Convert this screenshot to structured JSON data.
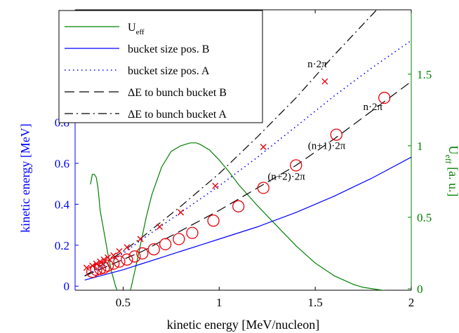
{
  "chart_data": {
    "type": "line",
    "xlabel": "kinetic energy [MeV/nucleon]",
    "ylabel_left": "kinetic energy [MeV]",
    "ylabel_right_main": "U",
    "ylabel_right_sub": "eff",
    "ylabel_right_rest": " [a. u.]",
    "xlim": [
      0.25,
      2.0
    ],
    "ylim_left": [
      -0.02,
      1.35
    ],
    "ylim_right": [
      -0.01,
      1.95
    ],
    "x_ticks": [
      0.5,
      1,
      1.5,
      2
    ],
    "x_tick_labels": [
      "0.5",
      "1",
      "1.5",
      "2"
    ],
    "y_left_ticks": [
      0,
      0.2,
      0.4,
      0.6,
      0.8
    ],
    "y_left_tick_labels": [
      "0",
      "0.2",
      "0.4",
      "0.6",
      "0.8"
    ],
    "y_right_ticks": [
      0,
      0.5,
      1,
      1.5
    ],
    "y_right_tick_labels": [
      "0",
      "0.5",
      "1",
      "1.5"
    ],
    "grid": false,
    "legend_position": "top-left",
    "colors": {
      "ueff": "#008000",
      "bucket_b": "#0000ff",
      "bucket_a": "#0000ff",
      "delta_b": "#000000",
      "delta_a": "#000000",
      "markers": "#e8000b",
      "left_axis": "#0000ff",
      "right_axis": "#008000"
    },
    "series": [
      {
        "key": "ueff",
        "name": "U",
        "name_sub": "eff",
        "axis": "right",
        "style": "solid",
        "x": [
          0.33,
          0.34,
          0.35,
          0.36,
          0.37,
          0.38,
          0.4,
          0.42,
          0.44,
          0.46,
          0.48,
          0.5,
          0.52,
          0.54,
          0.55,
          0.56,
          0.58,
          0.6,
          0.62,
          0.65,
          0.7,
          0.75,
          0.8,
          0.85,
          0.88,
          0.9,
          0.95,
          1.0,
          1.05,
          1.1,
          1.2,
          1.3,
          1.4,
          1.5,
          1.6,
          1.7,
          1.75,
          1.8,
          1.85,
          1.9
        ],
        "y": [
          0.73,
          0.8,
          0.8,
          0.78,
          0.7,
          0.55,
          0.4,
          0.25,
          0.12,
          0.02,
          -0.05,
          -0.1,
          -0.08,
          0.0,
          0.06,
          0.12,
          0.24,
          0.37,
          0.5,
          0.66,
          0.85,
          0.96,
          1.0,
          1.02,
          1.02,
          1.01,
          0.97,
          0.9,
          0.82,
          0.73,
          0.58,
          0.44,
          0.3,
          0.18,
          0.09,
          0.03,
          0.01,
          0.0,
          -0.01,
          -0.02
        ]
      },
      {
        "key": "bucket_b",
        "name": "bucket size pos. B",
        "axis": "left",
        "style": "solid",
        "x": [
          0.3,
          0.4,
          0.5,
          0.6,
          0.7,
          0.8,
          0.9,
          1.0,
          1.2,
          1.4,
          1.6,
          1.8,
          2.0
        ],
        "y": [
          0.03,
          0.055,
          0.08,
          0.11,
          0.14,
          0.17,
          0.2,
          0.23,
          0.29,
          0.36,
          0.44,
          0.53,
          0.63
        ]
      },
      {
        "key": "bucket_a",
        "name": "bucket size pos. A",
        "axis": "left",
        "style": "dotted",
        "x": [
          0.3,
          0.4,
          0.5,
          0.6,
          0.8,
          1.0,
          1.2,
          1.4,
          1.6,
          1.8,
          2.0
        ],
        "y": [
          0.05,
          0.1,
          0.16,
          0.23,
          0.36,
          0.49,
          0.63,
          0.78,
          0.93,
          1.07,
          1.2
        ]
      },
      {
        "key": "delta_b",
        "name": "ΔE to bunch bucket B",
        "axis": "left",
        "style": "dashed",
        "x": [
          0.3,
          0.4,
          0.5,
          0.6,
          0.8,
          1.0,
          1.2,
          1.4,
          1.6,
          1.8,
          2.0
        ],
        "y": [
          0.05,
          0.09,
          0.13,
          0.17,
          0.27,
          0.37,
          0.48,
          0.59,
          0.72,
          0.86,
          1.0
        ]
      },
      {
        "key": "delta_a",
        "name": "ΔE to bunch bucket A",
        "axis": "left",
        "style": "dashdot",
        "x": [
          0.3,
          0.4,
          0.5,
          0.6,
          0.8,
          1.0,
          1.2,
          1.4,
          1.6,
          1.8,
          2.0
        ],
        "y": [
          0.05,
          0.11,
          0.17,
          0.24,
          0.39,
          0.55,
          0.73,
          0.92,
          1.13,
          1.33,
          1.53
        ]
      }
    ],
    "markers_x": {
      "shape": "cross",
      "x": [
        0.31,
        0.34,
        0.36,
        0.38,
        0.4,
        0.42,
        0.45,
        0.48,
        0.52,
        0.59,
        0.69,
        0.8,
        0.98,
        1.23,
        1.55
      ],
      "y": [
        0.09,
        0.1,
        0.11,
        0.12,
        0.13,
        0.14,
        0.15,
        0.17,
        0.19,
        0.23,
        0.29,
        0.36,
        0.49,
        0.68,
        1.0
      ]
    },
    "markers_o": {
      "shape": "circle",
      "x": [
        0.34,
        0.36,
        0.38,
        0.4,
        0.42,
        0.45,
        0.48,
        0.52,
        0.56,
        0.6,
        0.66,
        0.72,
        0.79,
        0.86,
        0.97,
        1.1,
        1.23,
        1.4,
        1.61,
        1.86
      ],
      "y": [
        0.07,
        0.08,
        0.085,
        0.09,
        0.1,
        0.11,
        0.12,
        0.13,
        0.145,
        0.16,
        0.18,
        0.205,
        0.23,
        0.26,
        0.32,
        0.39,
        0.48,
        0.59,
        0.74,
        0.92
      ]
    },
    "annotations": [
      {
        "text": "n·2π",
        "x": 1.51,
        "y": 1.07
      },
      {
        "text": "(n+1)·2π",
        "x": 1.08,
        "y": 0.83
      },
      {
        "text": "(n+2)·2π",
        "x": 1.35,
        "y": 0.52
      },
      {
        "text": "n·2π",
        "x": 1.8,
        "y": 0.86
      },
      {
        "text": "(n+1)·2π",
        "x": 1.56,
        "y": 0.67
      }
    ]
  }
}
